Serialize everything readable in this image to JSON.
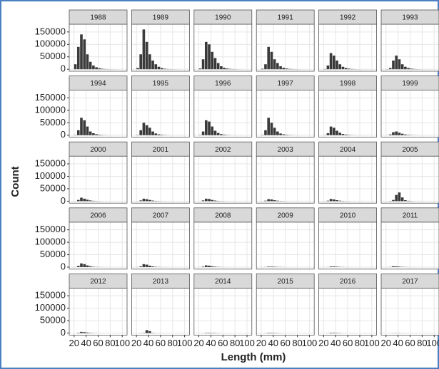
{
  "chart_data": {
    "type": "histogram",
    "x_label": "Length (mm)",
    "y_label": "Count",
    "bins": [
      20,
      25,
      30,
      35,
      40,
      45,
      50,
      55,
      60,
      65,
      70,
      75,
      80,
      85,
      90,
      95,
      100
    ],
    "xlim": [
      12,
      108
    ],
    "xticks": [
      20,
      40,
      60,
      80,
      100
    ],
    "ylim": [
      -8000,
      181000
    ],
    "yticks": [
      0,
      50000,
      100000,
      150000
    ],
    "grid": true,
    "color": "#3a3a3a",
    "facets": [
      {
        "title": "1988",
        "values": [
          20000,
          90000,
          140000,
          120000,
          60000,
          30000,
          15000,
          8000,
          4000,
          2000,
          1000,
          500,
          300,
          200,
          100,
          0
        ]
      },
      {
        "title": "1989",
        "values": [
          5000,
          60000,
          160000,
          110000,
          60000,
          35000,
          20000,
          10000,
          5000,
          2000,
          1000,
          500,
          300,
          200,
          100,
          0
        ]
      },
      {
        "title": "1990",
        "values": [
          3000,
          40000,
          110000,
          100000,
          70000,
          45000,
          25000,
          12000,
          6000,
          3000,
          1500,
          800,
          400,
          200,
          100,
          0
        ]
      },
      {
        "title": "1991",
        "values": [
          2000,
          20000,
          90000,
          70000,
          40000,
          25000,
          12000,
          6000,
          3000,
          1500,
          800,
          400,
          200,
          100,
          50,
          0
        ]
      },
      {
        "title": "1992",
        "values": [
          1000,
          15000,
          65000,
          55000,
          35000,
          20000,
          10000,
          5000,
          2500,
          1200,
          600,
          300,
          150,
          80,
          40,
          0
        ]
      },
      {
        "title": "1993",
        "values": [
          500,
          5000,
          35000,
          55000,
          40000,
          20000,
          10000,
          5000,
          2500,
          1200,
          600,
          300,
          150,
          80,
          40,
          0
        ]
      },
      {
        "title": "1994",
        "values": [
          1000,
          20000,
          70000,
          60000,
          35000,
          15000,
          8000,
          4000,
          2000,
          1000,
          500,
          250,
          120,
          60,
          30,
          0
        ]
      },
      {
        "title": "1995",
        "values": [
          1000,
          20000,
          50000,
          40000,
          30000,
          15000,
          7000,
          3500,
          1800,
          900,
          450,
          220,
          110,
          60,
          30,
          0
        ]
      },
      {
        "title": "1996",
        "values": [
          1000,
          15000,
          60000,
          55000,
          35000,
          18000,
          9000,
          4500,
          2200,
          1100,
          550,
          280,
          140,
          70,
          35,
          0
        ]
      },
      {
        "title": "1997",
        "values": [
          1000,
          20000,
          70000,
          50000,
          30000,
          15000,
          7000,
          3500,
          1800,
          900,
          450,
          220,
          110,
          60,
          30,
          0
        ]
      },
      {
        "title": "1998",
        "values": [
          500,
          8000,
          35000,
          30000,
          18000,
          10000,
          5000,
          2500,
          1200,
          600,
          300,
          150,
          80,
          40,
          20,
          0
        ]
      },
      {
        "title": "1999",
        "values": [
          200,
          3000,
          12000,
          15000,
          10000,
          6000,
          3000,
          1500,
          800,
          400,
          200,
          100,
          50,
          30,
          10,
          0
        ]
      },
      {
        "title": "2000",
        "values": [
          200,
          5000,
          14000,
          10000,
          6000,
          3000,
          1500,
          800,
          400,
          200,
          100,
          50,
          30,
          20,
          10,
          0
        ]
      },
      {
        "title": "2001",
        "values": [
          200,
          3000,
          10000,
          8000,
          5000,
          2500,
          1200,
          600,
          300,
          150,
          80,
          40,
          20,
          10,
          5,
          0
        ]
      },
      {
        "title": "2002",
        "values": [
          200,
          3000,
          10000,
          9000,
          5000,
          2500,
          1200,
          600,
          300,
          150,
          80,
          40,
          20,
          10,
          5,
          0
        ]
      },
      {
        "title": "2003",
        "values": [
          200,
          2000,
          8000,
          7000,
          4000,
          2000,
          1000,
          500,
          250,
          120,
          60,
          30,
          15,
          8,
          4,
          0
        ]
      },
      {
        "title": "2004",
        "values": [
          200,
          2000,
          9000,
          7000,
          4000,
          2000,
          1000,
          500,
          250,
          120,
          60,
          30,
          15,
          8,
          4,
          0
        ]
      },
      {
        "title": "2005",
        "values": [
          100,
          1000,
          5000,
          25000,
          35000,
          15000,
          4000,
          1500,
          700,
          300,
          150,
          80,
          40,
          20,
          10,
          0
        ]
      },
      {
        "title": "2006",
        "values": [
          200,
          5000,
          15000,
          12000,
          7000,
          3500,
          1500,
          700,
          300,
          150,
          80,
          40,
          20,
          10,
          5,
          0
        ]
      },
      {
        "title": "2007",
        "values": [
          200,
          3000,
          12000,
          10000,
          6000,
          3000,
          1300,
          600,
          300,
          150,
          80,
          40,
          20,
          10,
          5,
          0
        ]
      },
      {
        "title": "2008",
        "values": [
          100,
          2000,
          7000,
          6000,
          3500,
          1800,
          900,
          400,
          200,
          100,
          50,
          25,
          12,
          6,
          3,
          0
        ]
      },
      {
        "title": "2009",
        "values": [
          50,
          500,
          2000,
          2000,
          1500,
          900,
          500,
          250,
          120,
          60,
          30,
          15,
          8,
          4,
          2,
          0
        ]
      },
      {
        "title": "2010",
        "values": [
          50,
          400,
          2500,
          2500,
          1800,
          1000,
          500,
          250,
          120,
          60,
          30,
          15,
          8,
          4,
          2,
          0
        ]
      },
      {
        "title": "2011",
        "values": [
          50,
          600,
          3500,
          3000,
          2000,
          1000,
          500,
          250,
          120,
          60,
          30,
          15,
          8,
          4,
          2,
          0
        ]
      },
      {
        "title": "2012",
        "values": [
          100,
          1500,
          5000,
          4000,
          2500,
          1200,
          600,
          300,
          150,
          80,
          40,
          20,
          10,
          5,
          2,
          0
        ]
      },
      {
        "title": "2013",
        "values": [
          50,
          300,
          1000,
          12000,
          8000,
          1000,
          400,
          200,
          100,
          50,
          25,
          12,
          6,
          3,
          1,
          0
        ]
      },
      {
        "title": "2014",
        "values": [
          50,
          300,
          1500,
          1500,
          1200,
          800,
          400,
          200,
          100,
          50,
          25,
          12,
          6,
          3,
          1,
          0
        ]
      },
      {
        "title": "2015",
        "values": [
          50,
          400,
          1500,
          1500,
          1000,
          600,
          300,
          150,
          80,
          40,
          20,
          10,
          5,
          2,
          1,
          0
        ]
      },
      {
        "title": "2016",
        "values": [
          50,
          400,
          1800,
          1800,
          1200,
          700,
          350,
          180,
          90,
          45,
          20,
          10,
          5,
          2,
          1,
          0
        ]
      },
      {
        "title": "2017",
        "values": [
          20,
          100,
          400,
          500,
          400,
          250,
          120,
          60,
          30,
          15,
          8,
          4,
          2,
          1,
          0,
          0
        ]
      }
    ]
  }
}
